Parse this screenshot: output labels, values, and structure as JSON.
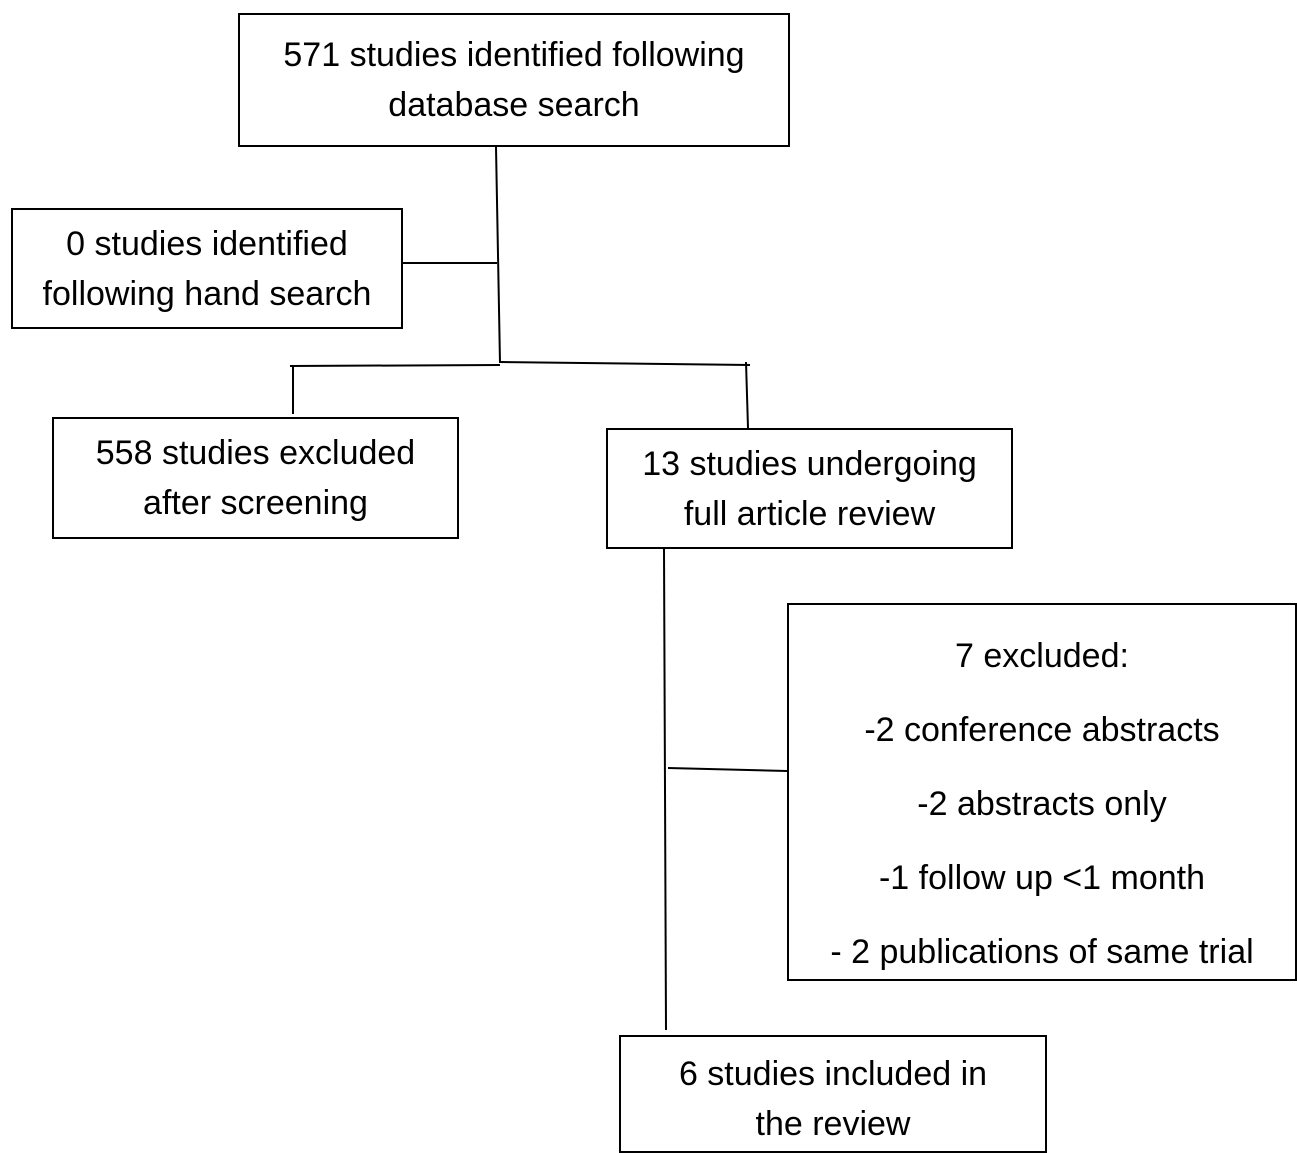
{
  "flowchart": {
    "database_search": {
      "line1": "571 studies identified following",
      "line2": "database search"
    },
    "hand_search": {
      "line1": "0 studies identified",
      "line2": "following hand search"
    },
    "excluded_screening": {
      "line1": "558 studies excluded",
      "line2": "after screening"
    },
    "full_review": {
      "line1": "13 studies undergoing",
      "line2": "full article review"
    },
    "excluded_full": {
      "heading": "7 excluded:",
      "reasons": [
        "-2 conference abstracts",
        "-2 abstracts only",
        "-1 follow up <1 month",
        "- 2 publications of same trial"
      ]
    },
    "included": {
      "line1": "6 studies included in",
      "line2": "the review"
    }
  }
}
